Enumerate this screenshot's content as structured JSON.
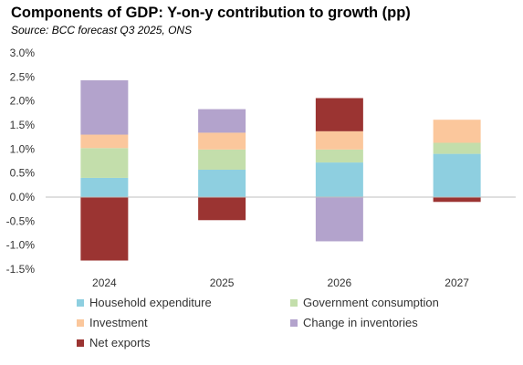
{
  "chart_data": {
    "type": "bar",
    "stacked": true,
    "title": "Components of GDP: Y-on-y contribution to growth (pp)",
    "subtitle": "Source: BCC forecast Q3 2025, ONS",
    "categories": [
      "2024",
      "2025",
      "2026",
      "2027"
    ],
    "ylim": [
      -1.5,
      3.0
    ],
    "yticks": [
      "3.0%",
      "2.5%",
      "2.0%",
      "1.5%",
      "1.0%",
      "0.5%",
      "0.0%",
      "-0.5%",
      "-1.0%",
      "-1.5%"
    ],
    "ytick_values": [
      3.0,
      2.5,
      2.0,
      1.5,
      1.0,
      0.5,
      0.0,
      -0.5,
      -1.0,
      -1.5
    ],
    "legend_position": "bottom",
    "series": [
      {
        "name": "Household expenditure",
        "color": "#8ecfe0",
        "values": [
          0.4,
          0.57,
          0.72,
          0.9
        ]
      },
      {
        "name": "Government consumption",
        "color": "#c3deab",
        "values": [
          0.62,
          0.42,
          0.27,
          0.23
        ]
      },
      {
        "name": "Investment",
        "color": "#fbc79c",
        "values": [
          0.28,
          0.35,
          0.38,
          0.48
        ]
      },
      {
        "name": "Change in inventories",
        "color": "#b3a3cc",
        "values": [
          1.13,
          0.49,
          -0.92,
          0
        ]
      },
      {
        "name": "Net exports",
        "color": "#9b3432",
        "values": [
          -1.32,
          -0.48,
          0.69,
          -0.1
        ]
      }
    ]
  }
}
